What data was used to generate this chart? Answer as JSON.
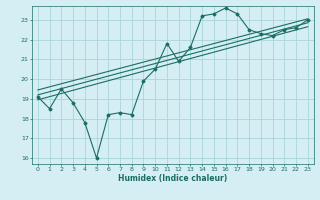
{
  "xlabel": "Humidex (Indice chaleur)",
  "bg_color": "#d4eef4",
  "grid_color": "#a8d4dc",
  "line_color": "#1a6e64",
  "xlim": [
    -0.5,
    23.5
  ],
  "ylim": [
    15.7,
    23.7
  ],
  "xticks": [
    0,
    1,
    2,
    3,
    4,
    5,
    6,
    7,
    8,
    9,
    10,
    11,
    12,
    13,
    14,
    15,
    16,
    17,
    18,
    19,
    20,
    21,
    22,
    23
  ],
  "yticks": [
    16,
    17,
    18,
    19,
    20,
    21,
    22,
    23
  ],
  "scatter_x": [
    0,
    1,
    2,
    3,
    4,
    5,
    6,
    7,
    8,
    9,
    10,
    11,
    12,
    13,
    14,
    15,
    16,
    17,
    18,
    19,
    20,
    21,
    22,
    23
  ],
  "scatter_y": [
    19.1,
    18.5,
    19.5,
    18.8,
    17.8,
    16.0,
    18.2,
    18.3,
    18.2,
    19.9,
    20.5,
    21.8,
    20.9,
    21.6,
    23.2,
    23.3,
    23.6,
    23.3,
    22.5,
    22.3,
    22.2,
    22.5,
    22.6,
    23.0
  ],
  "line1_x": [
    0,
    23
  ],
  "line1_y": [
    19.2,
    22.85
  ],
  "line2_x": [
    0,
    23
  ],
  "line2_y": [
    19.45,
    23.05
  ],
  "line3_x": [
    0,
    23
  ],
  "line3_y": [
    18.95,
    22.65
  ]
}
